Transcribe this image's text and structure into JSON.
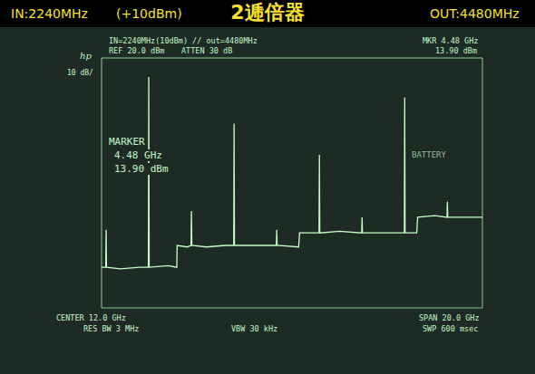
{
  "chart_data": {
    "type": "line",
    "title": "2逓倍器",
    "annotations": [
      "IN:2240MHz",
      "(+10dBm)",
      "OUT:4480MHz",
      "IN=2240MHz(10dBm) // out=4480MHz",
      "REF 20.0 dBm",
      "ATTEN 30 dB",
      "MKR 4.48 GHz",
      "13.90 dBm",
      "hp",
      "10 dB/",
      "MARKER",
      "4.48 GHz",
      "13.90 dBm",
      "BATTERY",
      "CENTER 12.0 GHz",
      "RES BW 3 MHz",
      "VBW 30 kHz",
      "SPAN 20.0 GHz",
      "SWP 600 msec"
    ],
    "x": [
      2.0,
      2.2,
      2.22,
      2.24,
      2.26,
      3.0,
      4.0,
      4.46,
      4.48,
      4.5,
      5.5,
      5.95,
      5.97,
      6.5,
      6.7,
      6.72,
      6.74,
      7.5,
      8.5,
      8.94,
      8.96,
      8.98,
      10.0,
      11.18,
      11.2,
      11.22,
      12.35,
      12.4,
      13.42,
      13.44,
      13.46,
      14.5,
      15.66,
      15.68,
      15.7,
      17.0,
      17.9,
      17.92,
      17.94,
      18.55,
      18.6,
      19.5,
      20.14,
      20.16,
      20.18,
      22.0
    ],
    "values": [
      -47,
      -47,
      -47,
      -35,
      -47,
      -47.5,
      -47,
      -47,
      13.9,
      -47,
      -46.5,
      -47,
      -40,
      -40.5,
      -40,
      -29,
      -40,
      -40.5,
      -40,
      -40,
      -1,
      -40,
      -40,
      -40,
      -35,
      -40,
      -40.5,
      -36,
      -36,
      -11,
      -36,
      -35.5,
      -36,
      -31,
      -36,
      -36,
      -36,
      7.4,
      -36,
      -36,
      -31,
      -30.5,
      -31,
      -26,
      -31,
      -31
    ],
    "color": "#c8ffc8",
    "xlim": [
      2,
      22
    ],
    "xticks": [
      2,
      4,
      6,
      8,
      10,
      12,
      14,
      16,
      18,
      20,
      22
    ],
    "ylim": [
      -60,
      20
    ],
    "yticks": [
      -60,
      -50,
      -40,
      -30,
      -20,
      -10,
      0,
      10,
      20
    ],
    "grid": true,
    "tick_labels": false
  }
}
